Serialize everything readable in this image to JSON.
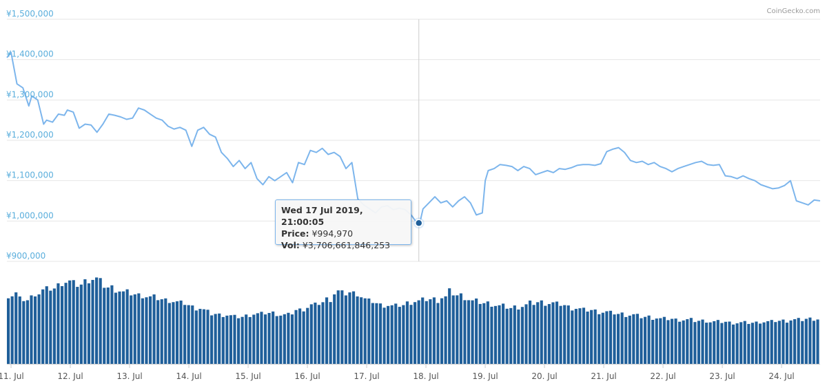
{
  "credit": "CoinGecko.com",
  "colors": {
    "price_line": "#7cb5ec",
    "volume_bar": "#1f5f9a",
    "grid": "#e6e6e6",
    "y_label": "#5aaedc"
  },
  "tooltip": {
    "date": "Wed 17 Jul 2019, 21:00:05",
    "price_label": "Price:",
    "price_value": "¥994,970",
    "vol_label": "Vol:",
    "vol_value": "¥3,706,661,846,253"
  },
  "chart_data": {
    "type": "line",
    "title": "",
    "xlabel": "",
    "ylabel": "",
    "ylim": [
      900000,
      1500000
    ],
    "y_ticks": [
      "¥1,500,000",
      "¥1,400,000",
      "¥1,300,000",
      "¥1,200,000",
      "¥1,100,000",
      "¥1,000,000",
      "¥900,000"
    ],
    "x_ticks": [
      "11. Jul",
      "12. Jul",
      "13. Jul",
      "14. Jul",
      "15. Jul",
      "16. Jul",
      "17. Jul",
      "18. Jul",
      "19. Jul",
      "20. Jul",
      "21. Jul",
      "22. Jul",
      "23. Jul",
      "24. Jul"
    ],
    "x_range_days": [
      10.93,
      24.65
    ],
    "price_series": {
      "name": "Price",
      "x_days": [
        10.93,
        11.0,
        11.1,
        11.2,
        11.3,
        11.35,
        11.45,
        11.55,
        11.6,
        11.7,
        11.8,
        11.9,
        11.95,
        12.05,
        12.15,
        12.25,
        12.35,
        12.45,
        12.55,
        12.65,
        12.75,
        12.85,
        12.95,
        13.05,
        13.15,
        13.25,
        13.35,
        13.45,
        13.55,
        13.65,
        13.75,
        13.85,
        13.95,
        14.05,
        14.15,
        14.25,
        14.35,
        14.45,
        14.55,
        14.65,
        14.75,
        14.85,
        14.95,
        15.05,
        15.15,
        15.25,
        15.35,
        15.45,
        15.55,
        15.65,
        15.75,
        15.85,
        15.95,
        16.05,
        16.15,
        16.25,
        16.35,
        16.45,
        16.55,
        16.65,
        16.75,
        16.85,
        16.95,
        17.05,
        17.15,
        17.25,
        17.35,
        17.45,
        17.55,
        17.65,
        17.75,
        17.85,
        17.9,
        17.95,
        18.05,
        18.15,
        18.25,
        18.35,
        18.45,
        18.55,
        18.65,
        18.75,
        18.85,
        18.95,
        19.0,
        19.05,
        19.15,
        19.25,
        19.35,
        19.45,
        19.55,
        19.65,
        19.75,
        19.85,
        19.95,
        20.05,
        20.15,
        20.25,
        20.35,
        20.45,
        20.55,
        20.65,
        20.75,
        20.85,
        20.95,
        21.05,
        21.15,
        21.25,
        21.35,
        21.45,
        21.55,
        21.65,
        21.75,
        21.85,
        21.95,
        22.05,
        22.15,
        22.25,
        22.35,
        22.45,
        22.55,
        22.65,
        22.75,
        22.85,
        22.95,
        23.05,
        23.15,
        23.25,
        23.35,
        23.45,
        23.55,
        23.65,
        23.75,
        23.85,
        23.95,
        24.05,
        24.15,
        24.25,
        24.35,
        24.45,
        24.55,
        24.65
      ],
      "values": [
        1405000,
        1418000,
        1340000,
        1330000,
        1285000,
        1310000,
        1300000,
        1240000,
        1250000,
        1245000,
        1265000,
        1262000,
        1275000,
        1270000,
        1230000,
        1240000,
        1238000,
        1220000,
        1240000,
        1265000,
        1262000,
        1258000,
        1252000,
        1255000,
        1280000,
        1275000,
        1265000,
        1255000,
        1250000,
        1235000,
        1228000,
        1232000,
        1225000,
        1185000,
        1225000,
        1232000,
        1215000,
        1208000,
        1170000,
        1155000,
        1135000,
        1150000,
        1130000,
        1145000,
        1105000,
        1090000,
        1110000,
        1100000,
        1110000,
        1120000,
        1095000,
        1145000,
        1140000,
        1175000,
        1170000,
        1180000,
        1165000,
        1170000,
        1160000,
        1130000,
        1145000,
        1055000,
        1040000,
        1030000,
        1020000,
        1035000,
        1038000,
        1028000,
        1032000,
        1028000,
        1015000,
        994970,
        998000,
        1030000,
        1045000,
        1060000,
        1045000,
        1050000,
        1035000,
        1050000,
        1060000,
        1045000,
        1015000,
        1020000,
        1100000,
        1125000,
        1130000,
        1140000,
        1138000,
        1135000,
        1125000,
        1135000,
        1130000,
        1115000,
        1120000,
        1125000,
        1120000,
        1130000,
        1128000,
        1132000,
        1138000,
        1140000,
        1140000,
        1138000,
        1142000,
        1172000,
        1178000,
        1182000,
        1170000,
        1150000,
        1145000,
        1148000,
        1140000,
        1145000,
        1135000,
        1130000,
        1122000,
        1130000,
        1135000,
        1140000,
        1145000,
        1148000,
        1140000,
        1138000,
        1140000,
        1112000,
        1110000,
        1105000,
        1112000,
        1105000,
        1100000,
        1090000,
        1085000,
        1080000,
        1082000,
        1088000,
        1100000,
        1050000,
        1045000,
        1040000,
        1052000,
        1050000
      ]
    },
    "volume_series": {
      "name": "Vol",
      "bar_count": 212,
      "relative_values": [
        0.7,
        0.72,
        0.66,
        0.65,
        0.68,
        0.72,
        0.75,
        0.76,
        0.77,
        0.8,
        0.83,
        0.84,
        0.82,
        0.81,
        0.84,
        0.86,
        0.87,
        0.84,
        0.8,
        0.78,
        0.76,
        0.75,
        0.73,
        0.72,
        0.71,
        0.7,
        0.69,
        0.68,
        0.67,
        0.66,
        0.65,
        0.64,
        0.63,
        0.62,
        0.6,
        0.58,
        0.57,
        0.55,
        0.53,
        0.51,
        0.5,
        0.5,
        0.49,
        0.48,
        0.48,
        0.49,
        0.5,
        0.51,
        0.51,
        0.52,
        0.52,
        0.51,
        0.5,
        0.5,
        0.52,
        0.55,
        0.56,
        0.58,
        0.6,
        0.62,
        0.63,
        0.66,
        0.72,
        0.74,
        0.72,
        0.73,
        0.72,
        0.69,
        0.66,
        0.64,
        0.62,
        0.6,
        0.6,
        0.59,
        0.59,
        0.6,
        0.62,
        0.63,
        0.64,
        0.65,
        0.66,
        0.66,
        0.65,
        0.68,
        0.74,
        0.72,
        0.7,
        0.68,
        0.66,
        0.64,
        0.63,
        0.62,
        0.61,
        0.6,
        0.59,
        0.58,
        0.57,
        0.58,
        0.59,
        0.6,
        0.62,
        0.63,
        0.63,
        0.62,
        0.62,
        0.61,
        0.6,
        0.58,
        0.57,
        0.56,
        0.55,
        0.55,
        0.54,
        0.53,
        0.53,
        0.52,
        0.52,
        0.51,
        0.5,
        0.5,
        0.49,
        0.48,
        0.48,
        0.47,
        0.47,
        0.46,
        0.46,
        0.46,
        0.45,
        0.45,
        0.45,
        0.44,
        0.44,
        0.44,
        0.43,
        0.43,
        0.43,
        0.43,
        0.42,
        0.42,
        0.42,
        0.42,
        0.42,
        0.42,
        0.43,
        0.43,
        0.43,
        0.44,
        0.44,
        0.44,
        0.45,
        0.45,
        0.45,
        0.46,
        0.46,
        0.46
      ]
    },
    "highlight_point": {
      "x_day": 17.88,
      "value": 994970
    },
    "grid": true,
    "legend": "none"
  }
}
